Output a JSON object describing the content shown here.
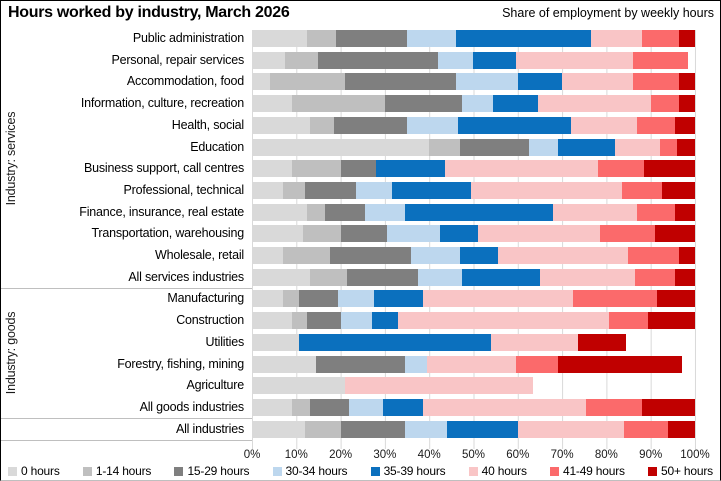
{
  "title": "Hours worked by industry, March 2026",
  "subtitle": "Share of employment by weekly hours",
  "chart_data": {
    "type": "bar",
    "variant": "horizontal-stacked-share",
    "title": "Hours worked by industry, March 2026",
    "subtitle": "Share of employment by weekly hours",
    "unit": "percent of employment",
    "grid": true,
    "legend_position": "bottom",
    "x_axis": {
      "min": 0,
      "max": 100,
      "ticks": [
        "0%",
        "10%",
        "20%",
        "30%",
        "40%",
        "50%",
        "60%",
        "70%",
        "80%",
        "90%",
        "100%"
      ]
    },
    "hour_bands": [
      {
        "label": "0 hours",
        "color": "#D9D9D9"
      },
      {
        "label": "1-14 hours",
        "color": "#BFBFBF"
      },
      {
        "label": "15-29 hours",
        "color": "#7F7F7F"
      },
      {
        "label": "30-34 hours",
        "color": "#BDD7EE"
      },
      {
        "label": "35-39 hours",
        "color": "#0B70BE"
      },
      {
        "label": "40 hours",
        "color": "#F9C5C6"
      },
      {
        "label": "41-49 hours",
        "color": "#FB6A6B"
      },
      {
        "label": "50+ hours",
        "color": "#C00000"
      }
    ],
    "groups": [
      {
        "label": "Industry: services",
        "industries": [
          {
            "name": "Public administration",
            "shares": [
              12.5,
              6.5,
              16.0,
              11.0,
              30.5,
              11.5,
              8.5,
              3.5
            ]
          },
          {
            "name": "Personal, repair services",
            "shares": [
              7.5,
              7.5,
              27.0,
              8.0,
              9.5,
              26.5,
              12.5,
              0.0
            ]
          },
          {
            "name": "Accommodation, food",
            "shares": [
              4.0,
              17.0,
              25.0,
              14.0,
              10.0,
              16.0,
              10.5,
              3.5
            ]
          },
          {
            "name": "Information, culture, recreation",
            "shares": [
              9.0,
              21.0,
              17.5,
              7.0,
              10.0,
              25.5,
              6.5,
              3.5
            ]
          },
          {
            "name": "Health, social",
            "shares": [
              13.0,
              5.5,
              16.5,
              11.5,
              25.5,
              15.0,
              8.5,
              4.5
            ]
          },
          {
            "name": "Education",
            "shares": [
              40.0,
              7.0,
              15.5,
              6.5,
              13.0,
              10.0,
              4.0,
              4.0
            ]
          },
          {
            "name": "Business support, call centres",
            "shares": [
              9.0,
              11.0,
              8.0,
              0.0,
              15.5,
              34.5,
              10.5,
              11.5
            ]
          },
          {
            "name": "Professional, technical",
            "shares": [
              7.0,
              5.0,
              11.5,
              8.0,
              18.0,
              34.0,
              9.0,
              7.5
            ]
          },
          {
            "name": "Finance, insurance, real estate",
            "shares": [
              12.5,
              4.0,
              9.0,
              9.0,
              33.5,
              19.0,
              8.5,
              4.5
            ]
          },
          {
            "name": "Transportation, warehousing",
            "shares": [
              11.5,
              8.5,
              10.5,
              12.0,
              8.5,
              27.5,
              12.5,
              9.0
            ]
          },
          {
            "name": "Wholesale, retail",
            "shares": [
              7.0,
              10.5,
              18.5,
              11.0,
              8.5,
              29.5,
              11.5,
              3.5
            ]
          },
          {
            "name": "All services industries",
            "shares": [
              13.0,
              8.5,
              16.0,
              10.0,
              17.5,
              21.5,
              9.0,
              4.5
            ]
          }
        ]
      },
      {
        "label": "Industry: goods",
        "industries": [
          {
            "name": "Manufacturing",
            "shares": [
              7.0,
              3.5,
              9.0,
              8.0,
              11.0,
              34.0,
              19.0,
              8.5
            ]
          },
          {
            "name": "Construction",
            "shares": [
              9.0,
              3.5,
              7.5,
              7.0,
              6.0,
              47.5,
              9.0,
              10.5
            ]
          },
          {
            "name": "Utilities",
            "shares": [
              10.5,
              0.0,
              0.0,
              0.0,
              43.5,
              19.5,
              0.0,
              11.0
            ]
          },
          {
            "name": "Forestry, fishing, mining",
            "shares": [
              14.5,
              0.0,
              20.0,
              5.0,
              0.0,
              20.0,
              9.5,
              28.0
            ]
          },
          {
            "name": "Agriculture",
            "shares": [
              21.0,
              0.0,
              0.0,
              0.0,
              0.0,
              42.5,
              0.0,
              0.0
            ]
          },
          {
            "name": "All goods industries",
            "shares": [
              9.0,
              4.0,
              9.0,
              7.5,
              9.0,
              37.0,
              12.5,
              12.0
            ]
          }
        ]
      },
      {
        "label": "",
        "industries": [
          {
            "name": "All industries",
            "shares": [
              12.0,
              8.0,
              14.5,
              9.5,
              16.0,
              24.0,
              10.0,
              6.0
            ]
          }
        ]
      }
    ]
  }
}
